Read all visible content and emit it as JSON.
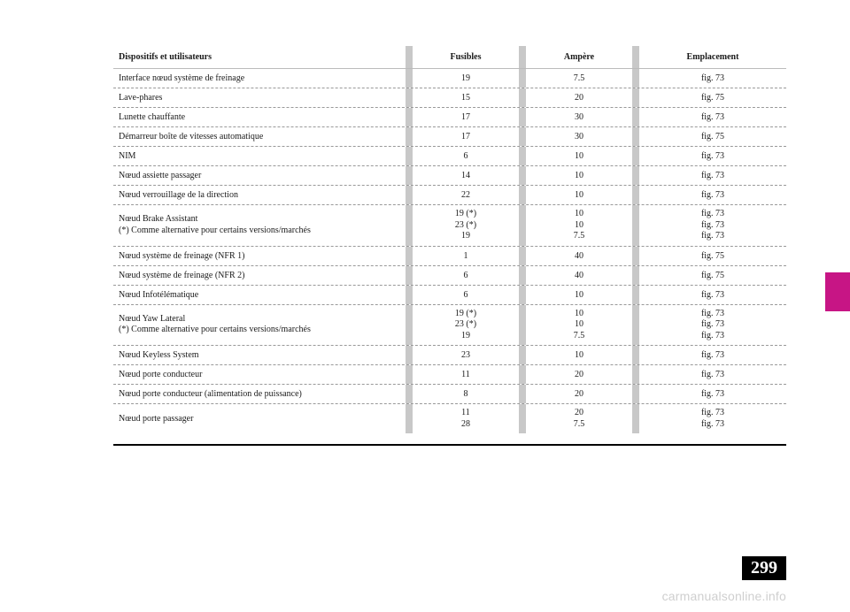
{
  "page_number": "299",
  "watermark": "carmanualsonline.info",
  "side_tab_color": "#c71585",
  "header": {
    "c1": "Dispositifs et utilisateurs",
    "c2": "Fusibles",
    "c3": "Ampère",
    "c4": "Emplacement"
  },
  "rows": [
    {
      "c1": [
        "Interface nœud système de freinage"
      ],
      "c2": [
        "19"
      ],
      "c3": [
        "7.5"
      ],
      "c4": [
        "fig. 73"
      ]
    },
    {
      "c1": [
        "Lave-phares"
      ],
      "c2": [
        "15"
      ],
      "c3": [
        "20"
      ],
      "c4": [
        "fig. 75"
      ]
    },
    {
      "c1": [
        "Lunette chauffante"
      ],
      "c2": [
        "17"
      ],
      "c3": [
        "30"
      ],
      "c4": [
        "fig. 73"
      ]
    },
    {
      "c1": [
        "Démarreur boîte de vitesses automatique"
      ],
      "c2": [
        "17"
      ],
      "c3": [
        "30"
      ],
      "c4": [
        "fig. 75"
      ]
    },
    {
      "c1": [
        "NIM"
      ],
      "c2": [
        "6"
      ],
      "c3": [
        "10"
      ],
      "c4": [
        "fig. 73"
      ]
    },
    {
      "c1": [
        "Nœud assiette passager"
      ],
      "c2": [
        "14"
      ],
      "c3": [
        "10"
      ],
      "c4": [
        "fig. 73"
      ]
    },
    {
      "c1": [
        "Nœud verrouillage de la direction"
      ],
      "c2": [
        "22"
      ],
      "c3": [
        "10"
      ],
      "c4": [
        "fig. 73"
      ]
    },
    {
      "c1": [
        "Nœud Brake Assistant",
        "(*) Comme alternative pour certains versions/marchés"
      ],
      "c2": [
        "19 (*)",
        "23 (*)",
        "19"
      ],
      "c3": [
        "10",
        "10",
        "7.5"
      ],
      "c4": [
        "fig. 73",
        "fig. 73",
        "fig. 73"
      ]
    },
    {
      "c1": [
        "Nœud système de freinage (NFR 1)"
      ],
      "c2": [
        "1"
      ],
      "c3": [
        "40"
      ],
      "c4": [
        "fig. 75"
      ]
    },
    {
      "c1": [
        "Nœud système de freinage (NFR 2)"
      ],
      "c2": [
        "6"
      ],
      "c3": [
        "40"
      ],
      "c4": [
        "fig. 75"
      ]
    },
    {
      "c1": [
        "Nœud Infotélématique"
      ],
      "c2": [
        "6"
      ],
      "c3": [
        "10"
      ],
      "c4": [
        "fig. 73"
      ]
    },
    {
      "c1": [
        "Nœud Yaw Lateral",
        "(*) Comme alternative pour certains versions/marchés"
      ],
      "c2": [
        "19 (*)",
        "23 (*)",
        "19"
      ],
      "c3": [
        "10",
        "10",
        "7.5"
      ],
      "c4": [
        "fig. 73",
        "fig. 73",
        "fig. 73"
      ]
    },
    {
      "c1": [
        "Nœud Keyless System"
      ],
      "c2": [
        "23"
      ],
      "c3": [
        "10"
      ],
      "c4": [
        "fig. 73"
      ]
    },
    {
      "c1": [
        "Nœud porte conducteur"
      ],
      "c2": [
        "11"
      ],
      "c3": [
        "20"
      ],
      "c4": [
        "fig. 73"
      ]
    },
    {
      "c1": [
        "Nœud porte conducteur (alimentation de puissance)"
      ],
      "c2": [
        "8"
      ],
      "c3": [
        "20"
      ],
      "c4": [
        "fig. 73"
      ]
    },
    {
      "c1": [
        "Nœud porte passager"
      ],
      "c2": [
        "11",
        "28"
      ],
      "c3": [
        "20",
        "7.5"
      ],
      "c4": [
        "fig. 73",
        "fig. 73"
      ]
    }
  ]
}
